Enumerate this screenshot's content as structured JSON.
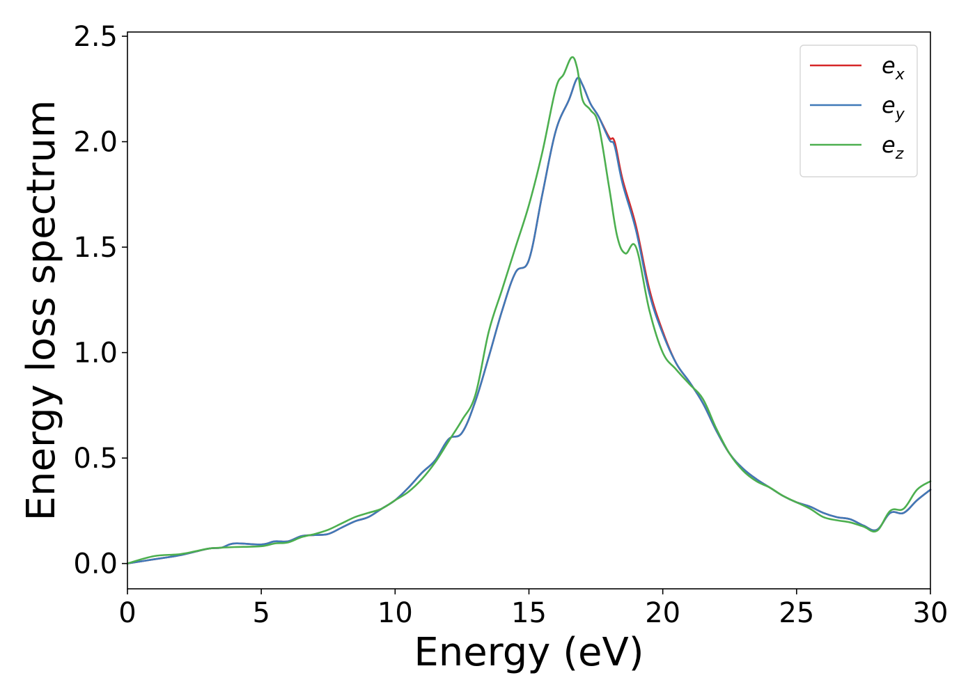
{
  "chart_data": {
    "type": "line",
    "title": "",
    "xlabel": "Energy (eV)",
    "ylabel": "Energy loss spectrum",
    "xlim": [
      0,
      30
    ],
    "ylim": [
      -0.12,
      2.52
    ],
    "xticks": [
      0,
      5,
      10,
      15,
      20,
      25,
      30
    ],
    "xtick_labels": [
      "0",
      "5",
      "10",
      "15",
      "20",
      "25",
      "30"
    ],
    "yticks": [
      0.0,
      0.5,
      1.0,
      1.5,
      2.0,
      2.5
    ],
    "ytick_labels": [
      "0.0",
      "0.5",
      "1.0",
      "1.5",
      "2.0",
      "2.5"
    ],
    "grid": false,
    "legend_position": "top-right",
    "series": [
      {
        "name": "e",
        "subscript": "x",
        "color": "#d62728",
        "points": [
          [
            0,
            0.0
          ],
          [
            1,
            0.02
          ],
          [
            2,
            0.04
          ],
          [
            3,
            0.07
          ],
          [
            3.5,
            0.075
          ],
          [
            4,
            0.095
          ],
          [
            5,
            0.09
          ],
          [
            5.5,
            0.105
          ],
          [
            6,
            0.105
          ],
          [
            6.5,
            0.13
          ],
          [
            7,
            0.135
          ],
          [
            7.5,
            0.14
          ],
          [
            8,
            0.17
          ],
          [
            8.5,
            0.2
          ],
          [
            9,
            0.22
          ],
          [
            9.5,
            0.26
          ],
          [
            10,
            0.3
          ],
          [
            10.5,
            0.36
          ],
          [
            11,
            0.43
          ],
          [
            11.5,
            0.49
          ],
          [
            12,
            0.59
          ],
          [
            12.5,
            0.62
          ],
          [
            13,
            0.77
          ],
          [
            13.5,
            0.98
          ],
          [
            14,
            1.2
          ],
          [
            14.5,
            1.38
          ],
          [
            15,
            1.44
          ],
          [
            15.5,
            1.75
          ],
          [
            16,
            2.05
          ],
          [
            16.5,
            2.2
          ],
          [
            16.8,
            2.3
          ],
          [
            17,
            2.27
          ],
          [
            17.3,
            2.18
          ],
          [
            17.6,
            2.12
          ],
          [
            18,
            2.02
          ],
          [
            18.2,
            2.0
          ],
          [
            18.5,
            1.82
          ],
          [
            19,
            1.6
          ],
          [
            19.5,
            1.3
          ],
          [
            20,
            1.1
          ],
          [
            20.5,
            0.95
          ],
          [
            21,
            0.86
          ],
          [
            21.5,
            0.76
          ],
          [
            22,
            0.63
          ],
          [
            22.5,
            0.52
          ],
          [
            23,
            0.45
          ],
          [
            23.5,
            0.4
          ],
          [
            24,
            0.36
          ],
          [
            24.5,
            0.32
          ],
          [
            25,
            0.29
          ],
          [
            25.5,
            0.27
          ],
          [
            26,
            0.24
          ],
          [
            26.5,
            0.22
          ],
          [
            27,
            0.21
          ],
          [
            27.5,
            0.18
          ],
          [
            28,
            0.16
          ],
          [
            28.5,
            0.24
          ],
          [
            29,
            0.24
          ],
          [
            29.5,
            0.3
          ],
          [
            30,
            0.35
          ]
        ]
      },
      {
        "name": "e",
        "subscript": "y",
        "color": "#3f79b8",
        "points": [
          [
            0,
            0.0
          ],
          [
            1,
            0.02
          ],
          [
            2,
            0.04
          ],
          [
            3,
            0.07
          ],
          [
            3.5,
            0.075
          ],
          [
            4,
            0.095
          ],
          [
            5,
            0.09
          ],
          [
            5.5,
            0.105
          ],
          [
            6,
            0.105
          ],
          [
            6.5,
            0.13
          ],
          [
            7,
            0.135
          ],
          [
            7.5,
            0.14
          ],
          [
            8,
            0.17
          ],
          [
            8.5,
            0.2
          ],
          [
            9,
            0.22
          ],
          [
            9.5,
            0.26
          ],
          [
            10,
            0.3
          ],
          [
            10.5,
            0.36
          ],
          [
            11,
            0.43
          ],
          [
            11.5,
            0.49
          ],
          [
            12,
            0.59
          ],
          [
            12.5,
            0.62
          ],
          [
            13,
            0.77
          ],
          [
            13.5,
            0.98
          ],
          [
            14,
            1.2
          ],
          [
            14.5,
            1.38
          ],
          [
            15,
            1.44
          ],
          [
            15.5,
            1.75
          ],
          [
            16,
            2.05
          ],
          [
            16.5,
            2.2
          ],
          [
            16.8,
            2.3
          ],
          [
            17,
            2.27
          ],
          [
            17.3,
            2.18
          ],
          [
            17.6,
            2.12
          ],
          [
            18,
            2.01
          ],
          [
            18.2,
            1.98
          ],
          [
            18.5,
            1.8
          ],
          [
            19,
            1.58
          ],
          [
            19.5,
            1.28
          ],
          [
            20,
            1.09
          ],
          [
            20.5,
            0.95
          ],
          [
            21,
            0.86
          ],
          [
            21.5,
            0.76
          ],
          [
            22,
            0.63
          ],
          [
            22.5,
            0.52
          ],
          [
            23,
            0.45
          ],
          [
            23.5,
            0.4
          ],
          [
            24,
            0.36
          ],
          [
            24.5,
            0.32
          ],
          [
            25,
            0.29
          ],
          [
            25.5,
            0.27
          ],
          [
            26,
            0.24
          ],
          [
            26.5,
            0.22
          ],
          [
            27,
            0.21
          ],
          [
            27.5,
            0.18
          ],
          [
            28,
            0.16
          ],
          [
            28.5,
            0.24
          ],
          [
            29,
            0.24
          ],
          [
            29.5,
            0.3
          ],
          [
            30,
            0.35
          ]
        ]
      },
      {
        "name": "e",
        "subscript": "z",
        "color": "#4caf4f",
        "points": [
          [
            0,
            0.0
          ],
          [
            1,
            0.035
          ],
          [
            2,
            0.045
          ],
          [
            3,
            0.07
          ],
          [
            3.5,
            0.075
          ],
          [
            4,
            0.078
          ],
          [
            5,
            0.082
          ],
          [
            5.5,
            0.095
          ],
          [
            6,
            0.1
          ],
          [
            6.5,
            0.125
          ],
          [
            7,
            0.14
          ],
          [
            7.5,
            0.16
          ],
          [
            8,
            0.19
          ],
          [
            8.5,
            0.22
          ],
          [
            9,
            0.24
          ],
          [
            9.5,
            0.26
          ],
          [
            10,
            0.3
          ],
          [
            10.5,
            0.34
          ],
          [
            11,
            0.4
          ],
          [
            11.5,
            0.48
          ],
          [
            12,
            0.58
          ],
          [
            12.5,
            0.68
          ],
          [
            13,
            0.8
          ],
          [
            13.5,
            1.1
          ],
          [
            14,
            1.3
          ],
          [
            14.5,
            1.5
          ],
          [
            15,
            1.7
          ],
          [
            15.5,
            1.95
          ],
          [
            16,
            2.25
          ],
          [
            16.3,
            2.32
          ],
          [
            16.6,
            2.4
          ],
          [
            16.8,
            2.35
          ],
          [
            17,
            2.2
          ],
          [
            17.3,
            2.15
          ],
          [
            17.6,
            2.08
          ],
          [
            18,
            1.78
          ],
          [
            18.3,
            1.55
          ],
          [
            18.6,
            1.47
          ],
          [
            19,
            1.5
          ],
          [
            19.5,
            1.2
          ],
          [
            20,
            1.0
          ],
          [
            20.5,
            0.92
          ],
          [
            21,
            0.85
          ],
          [
            21.5,
            0.78
          ],
          [
            22,
            0.64
          ],
          [
            22.5,
            0.52
          ],
          [
            23,
            0.44
          ],
          [
            23.5,
            0.39
          ],
          [
            24,
            0.36
          ],
          [
            24.5,
            0.32
          ],
          [
            25,
            0.29
          ],
          [
            25.5,
            0.26
          ],
          [
            26,
            0.22
          ],
          [
            26.5,
            0.205
          ],
          [
            27,
            0.195
          ],
          [
            27.5,
            0.175
          ],
          [
            28,
            0.155
          ],
          [
            28.5,
            0.25
          ],
          [
            29,
            0.26
          ],
          [
            29.5,
            0.35
          ],
          [
            30,
            0.39
          ]
        ]
      }
    ]
  }
}
